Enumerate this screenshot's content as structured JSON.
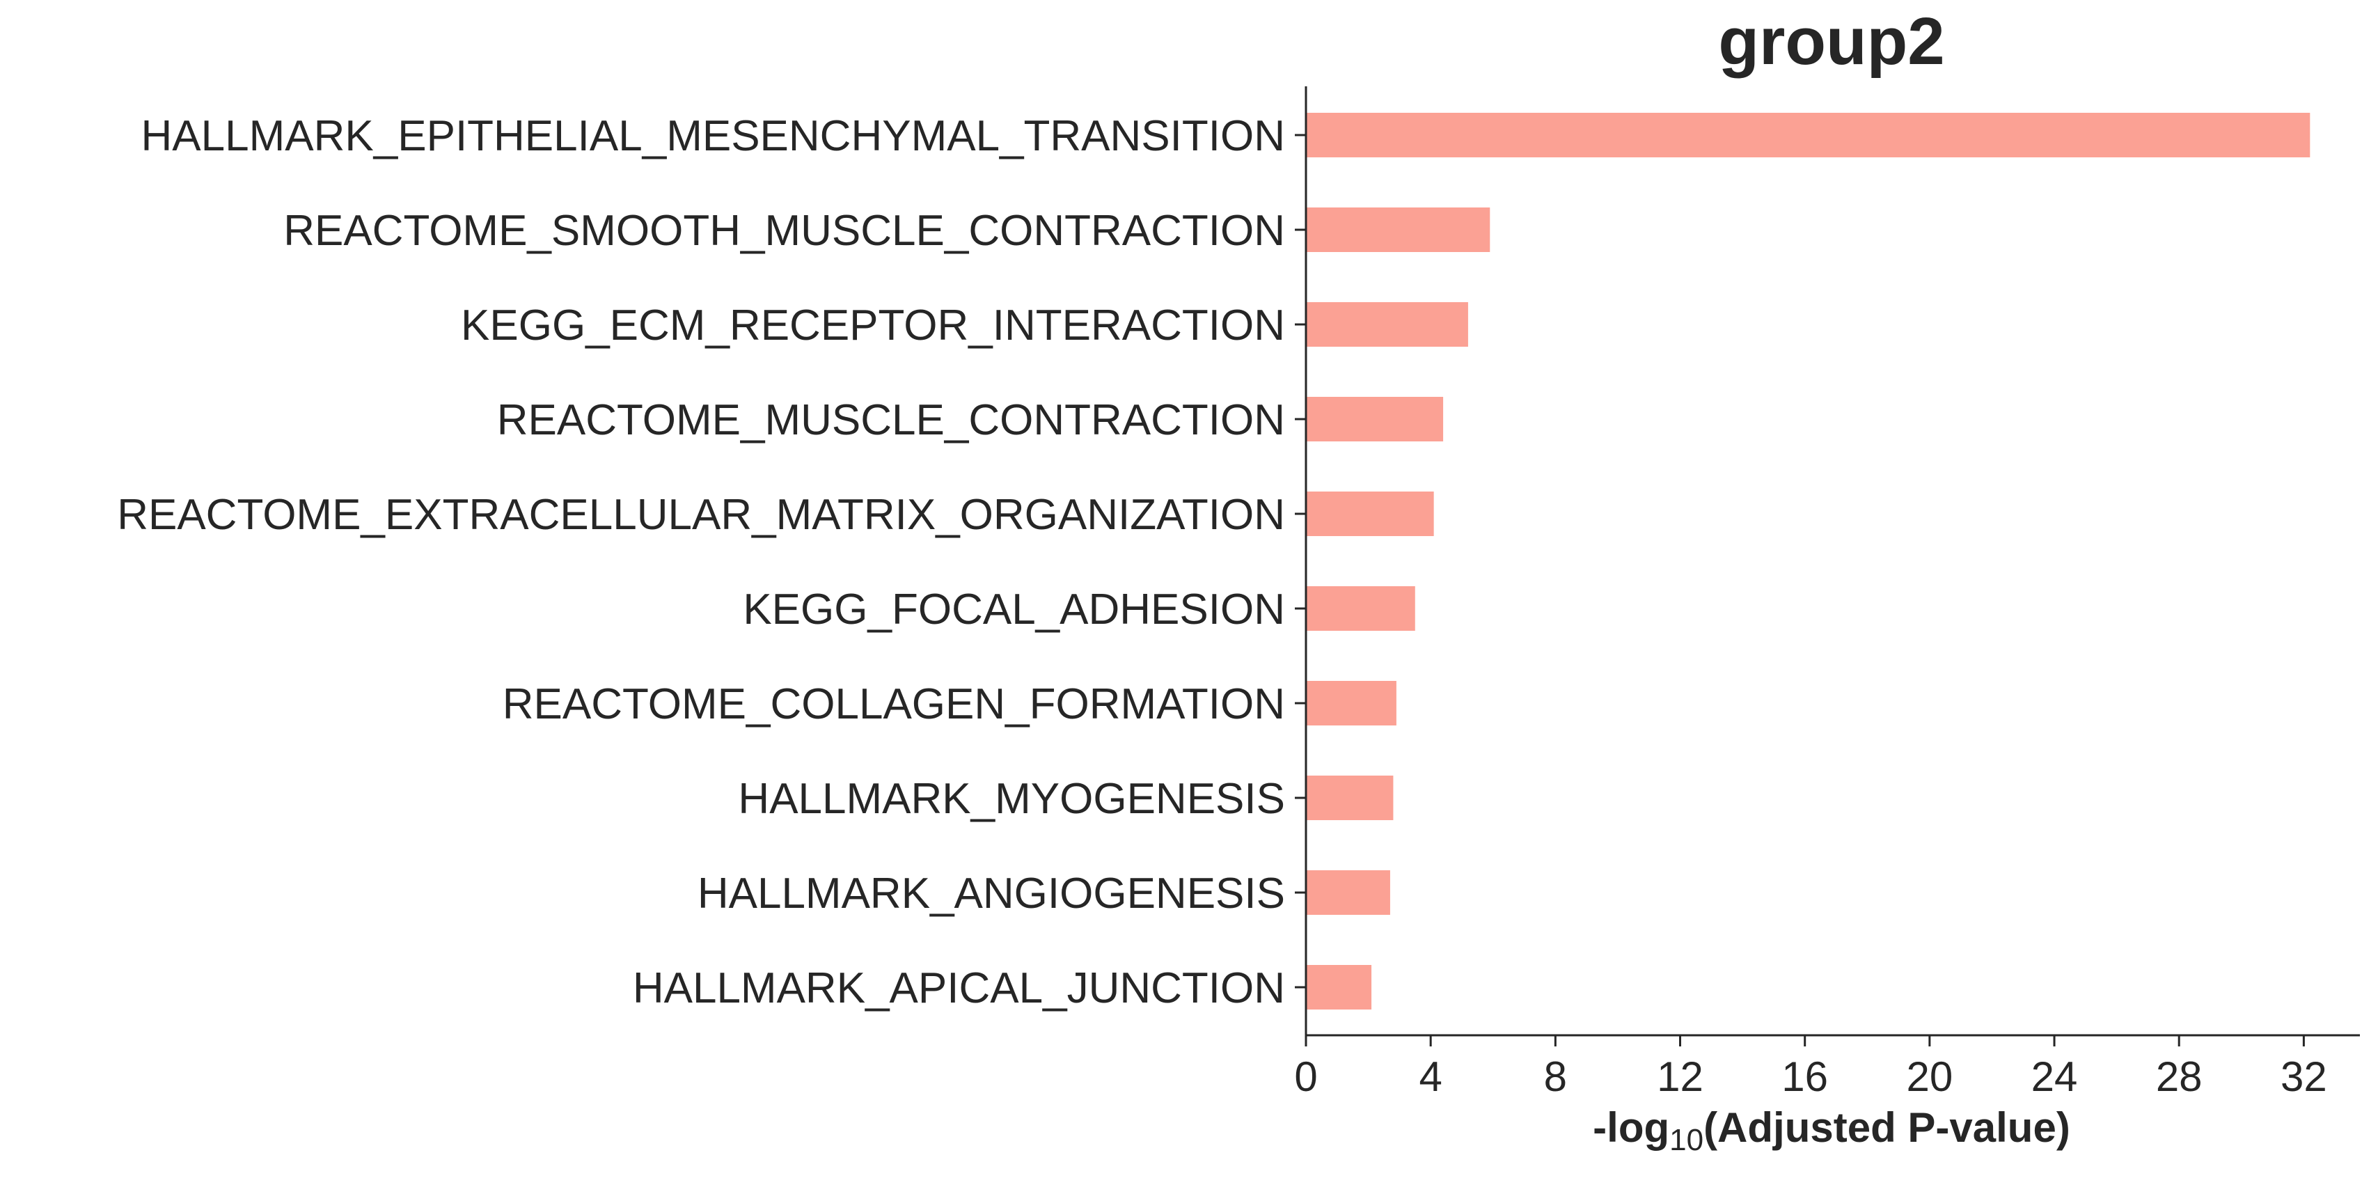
{
  "chart_data": {
    "type": "bar",
    "orientation": "horizontal",
    "title": "group2",
    "xlabel": {
      "prefix": "-log",
      "subscript": "10",
      "suffix": "(Adjusted P-value)"
    },
    "ylabel": "",
    "xlim": [
      0,
      33.8
    ],
    "xticks": [
      0,
      4,
      8,
      12,
      16,
      20,
      24,
      28,
      32
    ],
    "grid": false,
    "legend": "none",
    "bar_color": "#fba194",
    "text_color": "#262626",
    "axis_color": "#262626",
    "categories": [
      "HALLMARK_EPITHELIAL_MESENCHYMAL_TRANSITION",
      "REACTOME_SMOOTH_MUSCLE_CONTRACTION",
      "KEGG_ECM_RECEPTOR_INTERACTION",
      "REACTOME_MUSCLE_CONTRACTION",
      "REACTOME_EXTRACELLULAR_MATRIX_ORGANIZATION",
      "KEGG_FOCAL_ADHESION",
      "REACTOME_COLLAGEN_FORMATION",
      "HALLMARK_MYOGENESIS",
      "HALLMARK_ANGIOGENESIS",
      "HALLMARK_APICAL_JUNCTION"
    ],
    "values": [
      32.2,
      5.9,
      5.2,
      4.4,
      4.1,
      3.5,
      2.9,
      2.8,
      2.7,
      2.1
    ]
  }
}
